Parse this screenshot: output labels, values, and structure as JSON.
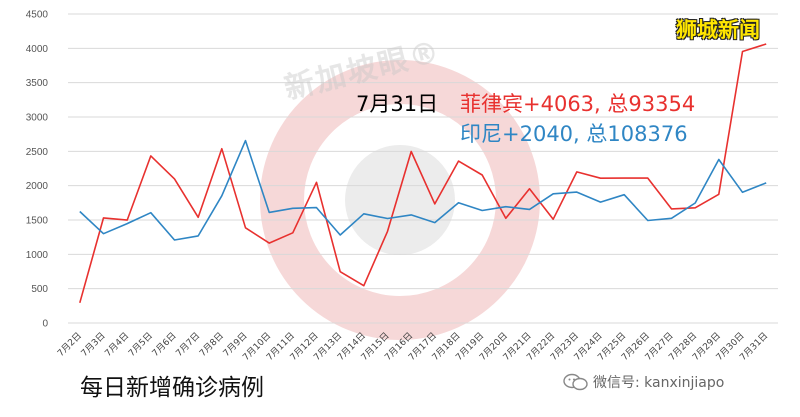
{
  "brand": "狮城新闻",
  "watermark": "新加坡眼®",
  "caption": "每日新增确诊病例",
  "wechat_label": "微信号: kanxinjiapo",
  "annotation": {
    "date": "7月31日",
    "philippines": "菲律宾+4063, 总93354",
    "indonesia": "印尼+2040, 总108376"
  },
  "colors": {
    "philippines": "#e8312f",
    "indonesia": "#2f86c4",
    "watermark_red": "#f4c9c9"
  },
  "chart_data": {
    "type": "line",
    "title": "",
    "xlabel": "",
    "ylabel": "",
    "ylim": [
      0,
      4500
    ],
    "yticks": [
      0,
      500,
      1000,
      1500,
      2000,
      2500,
      3000,
      3500,
      4000,
      4500
    ],
    "grid": true,
    "legend": "none",
    "categories": [
      "7月2日",
      "7月3日",
      "7月4日",
      "7月5日",
      "7月6日",
      "7月7日",
      "7月8日",
      "7月9日",
      "7月10日",
      "7月11日",
      "7月12日",
      "7月13日",
      "7月14日",
      "7月15日",
      "7月16日",
      "7月17日",
      "7月18日",
      "7月19日",
      "7月20日",
      "7月21日",
      "7月22日",
      "7月23日",
      "7月24日",
      "7月25日",
      "7月26日",
      "7月27日",
      "7月28日",
      "7月29日",
      "7月30日",
      "7月31日"
    ],
    "series": [
      {
        "key": "philippines",
        "values": [
          294,
          1531,
          1498,
          2434,
          2099,
          1540,
          2539,
          1387,
          1163,
          1314,
          2049,
          747,
          543,
          1334,
          2498,
          1734,
          2358,
          2156,
          1525,
          1955,
          1511,
          2200,
          2109,
          2110,
          2110,
          1661,
          1678,
          1874,
          3954,
          4063
        ]
      },
      {
        "key": "indonesia",
        "values": [
          1624,
          1301,
          1447,
          1607,
          1209,
          1268,
          1853,
          2657,
          1611,
          1671,
          1681,
          1282,
          1591,
          1522,
          1574,
          1462,
          1752,
          1639,
          1693,
          1655,
          1882,
          1906,
          1761,
          1868,
          1492,
          1525,
          1748,
          2381,
          1904,
          2040
        ]
      }
    ]
  }
}
